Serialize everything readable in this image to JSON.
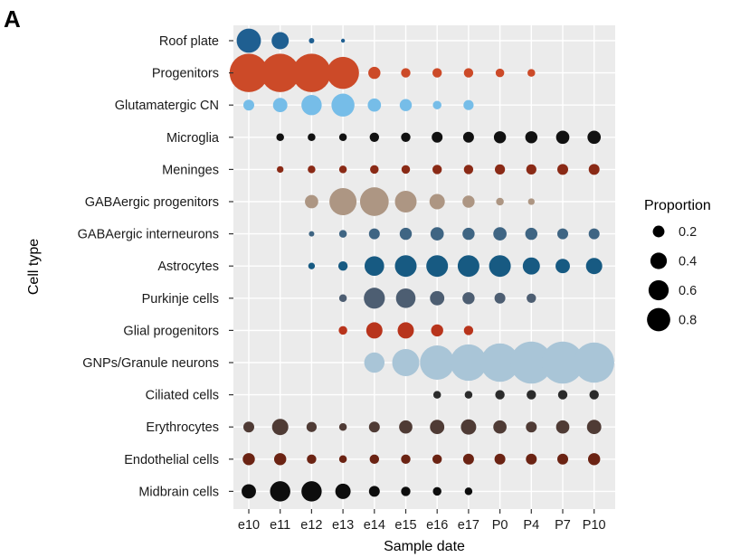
{
  "panel_label": "A",
  "chart_data": {
    "type": "scatter",
    "xlabel": "Sample date",
    "ylabel": "Cell type",
    "grid": true,
    "legend_position": "right",
    "x_categories": [
      "e10",
      "e11",
      "e12",
      "e13",
      "e14",
      "e15",
      "e16",
      "e17",
      "P0",
      "P4",
      "P7",
      "P10"
    ],
    "y_categories": [
      "Roof plate",
      "Progenitors",
      "Glutamatergic CN",
      "Microglia",
      "Meninges",
      "GABAergic progenitors",
      "GABAergic interneurons",
      "Astrocytes",
      "Purkinje cells",
      "Glial progenitors",
      "GNPs/Granule neurons",
      "Ciliated cells",
      "Erythrocytes",
      "Endothelial cells",
      "Midbrain cells"
    ],
    "legend": {
      "title": "Proportion",
      "entries": [
        {
          "label": "0.2",
          "value": 0.2
        },
        {
          "label": "0.4",
          "value": 0.4
        },
        {
          "label": "0.6",
          "value": 0.6
        },
        {
          "label": "0.8",
          "value": 0.8
        }
      ]
    },
    "series": [
      {
        "color": "#1f5f91",
        "values": [
          0.2,
          0.1,
          0.01,
          0.005,
          null,
          null,
          null,
          null,
          null,
          null,
          null,
          null
        ]
      },
      {
        "color": "#cc4a28",
        "values": [
          0.5,
          0.5,
          0.5,
          0.35,
          0.05,
          0.03,
          0.03,
          0.03,
          0.025,
          0.02,
          null,
          null
        ]
      },
      {
        "color": "#76bde8",
        "values": [
          0.04,
          0.07,
          0.14,
          0.18,
          0.06,
          0.05,
          0.025,
          0.035,
          null,
          null,
          null,
          null
        ]
      },
      {
        "color": "#111111",
        "values": [
          null,
          0.02,
          0.02,
          0.02,
          0.03,
          0.03,
          0.04,
          0.04,
          0.05,
          0.05,
          0.06,
          0.06
        ]
      },
      {
        "color": "#8a2a16",
        "values": [
          null,
          0.015,
          0.02,
          0.02,
          0.025,
          0.025,
          0.03,
          0.03,
          0.035,
          0.035,
          0.04,
          0.04
        ]
      },
      {
        "color": "#ad9683",
        "values": [
          null,
          null,
          0.06,
          0.25,
          0.28,
          0.16,
          0.08,
          0.05,
          0.02,
          0.015,
          null,
          null
        ]
      },
      {
        "color": "#3f6583",
        "values": [
          null,
          null,
          0.01,
          0.02,
          0.04,
          0.05,
          0.06,
          0.05,
          0.06,
          0.05,
          0.04,
          0.04
        ]
      },
      {
        "color": "#175a82",
        "values": [
          null,
          null,
          0.015,
          0.03,
          0.13,
          0.16,
          0.16,
          0.16,
          0.16,
          0.1,
          0.07,
          0.09
        ]
      },
      {
        "color": "#4d5e72",
        "values": [
          null,
          null,
          null,
          0.02,
          0.15,
          0.13,
          0.07,
          0.05,
          0.04,
          0.03,
          null,
          null
        ]
      },
      {
        "color": "#b8341c",
        "values": [
          null,
          null,
          null,
          0.025,
          0.09,
          0.09,
          0.05,
          0.03,
          null,
          null,
          null,
          null
        ]
      },
      {
        "color": "#a9c5d7",
        "values": [
          null,
          null,
          null,
          null,
          0.14,
          0.25,
          0.4,
          0.45,
          0.5,
          0.6,
          0.6,
          0.55
        ]
      },
      {
        "color": "#2b2b2b",
        "values": [
          null,
          null,
          null,
          null,
          null,
          null,
          0.02,
          0.02,
          0.03,
          0.03,
          0.03,
          0.03
        ]
      },
      {
        "color": "#4f3b35",
        "values": [
          0.04,
          0.09,
          0.035,
          0.02,
          0.04,
          0.06,
          0.07,
          0.08,
          0.06,
          0.04,
          0.06,
          0.07
        ]
      },
      {
        "color": "#6b2313",
        "values": [
          0.05,
          0.05,
          0.03,
          0.02,
          0.03,
          0.03,
          0.03,
          0.04,
          0.04,
          0.04,
          0.04,
          0.05
        ]
      },
      {
        "color": "#0d0d0d",
        "values": [
          0.07,
          0.14,
          0.14,
          0.08,
          0.04,
          0.03,
          0.025,
          0.02,
          null,
          null,
          null,
          null
        ]
      }
    ]
  }
}
